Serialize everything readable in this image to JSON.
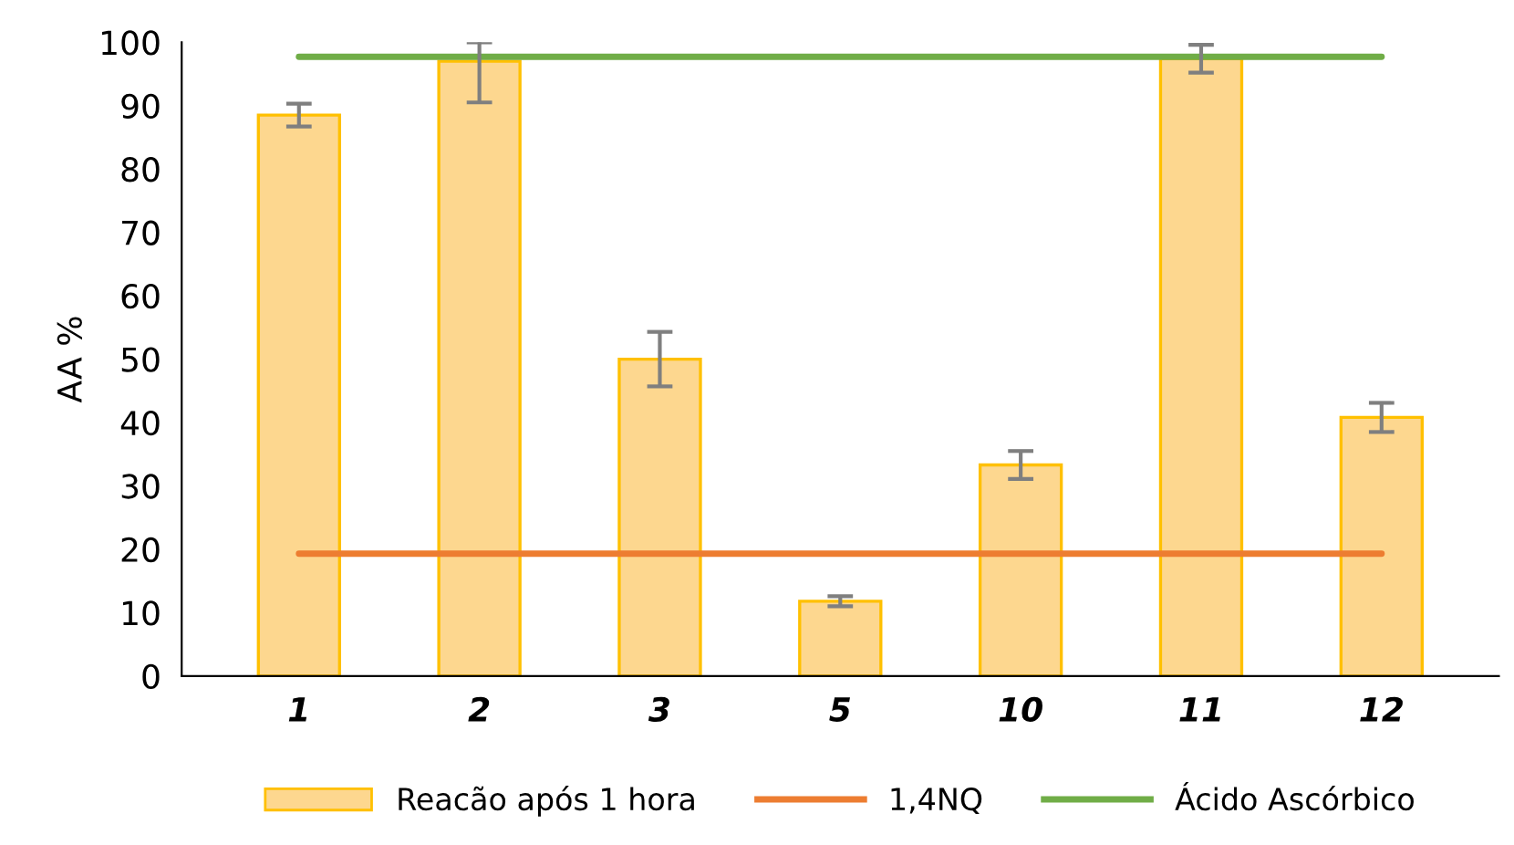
{
  "chart_data": {
    "type": "bar",
    "ylabel": "AA %",
    "categories": [
      "1",
      "2",
      "3",
      "5",
      "10",
      "11",
      "12"
    ],
    "ylim": [
      0,
      100
    ],
    "yticks": [
      0,
      10,
      20,
      30,
      40,
      50,
      60,
      70,
      80,
      90,
      100
    ],
    "grid": false,
    "legend": "bottom",
    "series": [
      {
        "name": "Reacão após 1 hora",
        "color": "#fdd78f",
        "values": [
          88.5,
          97.0,
          50.0,
          11.8,
          33.3,
          97.4,
          40.8
        ],
        "errors": [
          1.8,
          [
            90.5,
            100
          ],
          4.3,
          0.8,
          2.2,
          2.2,
          2.3
        ]
      },
      {
        "name": "1,4NQ",
        "type": "line",
        "color": "#ed7d31",
        "values": [
          19.3,
          19.3,
          19.3,
          19.3,
          19.3,
          19.3,
          19.3
        ]
      },
      {
        "name": "Ácido Ascórbico",
        "type": "line",
        "color": "#70ad47",
        "values": [
          97.7,
          97.7,
          97.7,
          97.7,
          97.7,
          97.7,
          97.7
        ]
      }
    ]
  }
}
